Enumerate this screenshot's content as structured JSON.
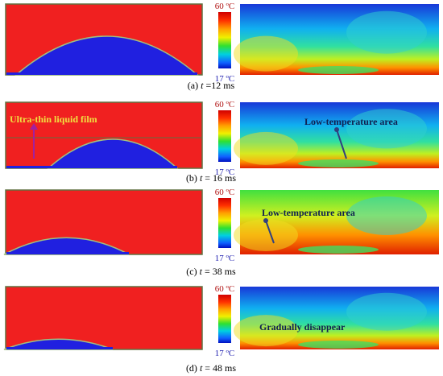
{
  "panels": [
    {
      "label": "(a)",
      "var": "t",
      "time": " =12 ms",
      "colorbar_max": "60 ºC",
      "colorbar_min": "17 ºC"
    },
    {
      "label": "(b)",
      "var": "t",
      "time": " = 16 ms",
      "colorbar_max": "60 ºC",
      "colorbar_min": "17 ºC",
      "left_annotation": "Ultra-thin liquid film",
      "right_annotation": "Low-temperature area"
    },
    {
      "label": "(c)",
      "var": "t",
      "time": " = 38 ms",
      "colorbar_max": "60 ºC",
      "colorbar_min": "17 ºC",
      "right_annotation": "Low-temperature area"
    },
    {
      "label": "(d)",
      "var": "t",
      "time": " = 48 ms",
      "colorbar_max": "60 ºC",
      "colorbar_min": "17 ºC",
      "right_annotation": "Gradually disappear"
    }
  ]
}
